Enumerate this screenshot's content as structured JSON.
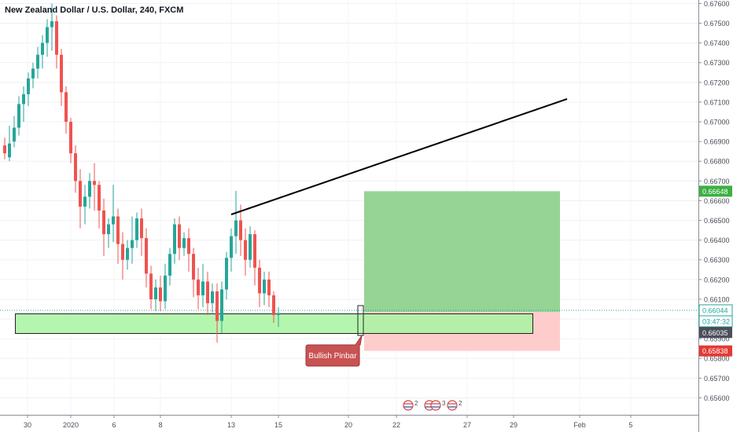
{
  "chart_title": "New Zealand Dollar / U.S. Dollar, 240, FXCM",
  "chart_data": {
    "type": "candlestick",
    "title": "New Zealand Dollar / U.S. Dollar, 240, FXCM",
    "symbol": "NZDUSD",
    "timeframe": "240",
    "source": "FXCM",
    "ylim": [
      0.655,
      0.676
    ],
    "y_ticks": [
      "0.65600",
      "0.65700",
      "0.65800",
      "0.65900",
      "0.66000",
      "0.66100",
      "0.66200",
      "0.66300",
      "0.66400",
      "0.66500",
      "0.66600",
      "0.66700",
      "0.66800",
      "0.66900",
      "0.67000",
      "0.67100",
      "0.67200",
      "0.67300",
      "0.67400",
      "0.67500",
      "0.67600"
    ],
    "x_ticks": [
      "30",
      "2020",
      "6",
      "8",
      "13",
      "15",
      "20",
      "22",
      "27",
      "29",
      "Feb",
      "5"
    ],
    "price_labels": {
      "take_profit": "0.66648",
      "last_price": "0.66044",
      "countdown": "03:47:32",
      "entry": "0.66035",
      "stop_loss": "0.65838"
    },
    "colors": {
      "up": "#26a69a",
      "down": "#ef5350",
      "profit_zone": "#8fd28f",
      "loss_zone": "#ffc9c9",
      "support_zone": "#a8f5a0",
      "annotation": "#c95252"
    },
    "candles": [
      [
        0.6688,
        0.6692,
        0.6684,
        0.6681
      ],
      [
        0.6682,
        0.6698,
        0.6689,
        0.668
      ],
      [
        0.669,
        0.6703,
        0.6697,
        0.6687
      ],
      [
        0.6697,
        0.6713,
        0.6709,
        0.6693
      ],
      [
        0.6709,
        0.6718,
        0.6714,
        0.67
      ],
      [
        0.6714,
        0.6725,
        0.6722,
        0.6708
      ],
      [
        0.6722,
        0.673,
        0.6727,
        0.6717
      ],
      [
        0.6727,
        0.6738,
        0.6734,
        0.6722
      ],
      [
        0.6734,
        0.6744,
        0.674,
        0.6727
      ],
      [
        0.674,
        0.6752,
        0.6748,
        0.6733
      ],
      [
        0.6748,
        0.676,
        0.6751,
        0.6736
      ],
      [
        0.6751,
        0.6754,
        0.6734,
        0.6727
      ],
      [
        0.6734,
        0.6737,
        0.6715,
        0.6708
      ],
      [
        0.6715,
        0.6718,
        0.67,
        0.6694
      ],
      [
        0.67,
        0.6702,
        0.6684,
        0.6679
      ],
      [
        0.6684,
        0.6688,
        0.667,
        0.6664
      ],
      [
        0.667,
        0.6676,
        0.6657,
        0.6646
      ],
      [
        0.6657,
        0.6668,
        0.6662,
        0.6648
      ],
      [
        0.6662,
        0.6674,
        0.667,
        0.6656
      ],
      [
        0.667,
        0.6679,
        0.6668,
        0.6655
      ],
      [
        0.6668,
        0.667,
        0.6655,
        0.6646
      ],
      [
        0.6655,
        0.6661,
        0.6643,
        0.6632
      ],
      [
        0.6643,
        0.6651,
        0.6648,
        0.6636
      ],
      [
        0.6648,
        0.6668,
        0.6652,
        0.6639
      ],
      [
        0.6652,
        0.6656,
        0.6638,
        0.6628
      ],
      [
        0.6638,
        0.6644,
        0.663,
        0.662
      ],
      [
        0.663,
        0.664,
        0.6636,
        0.6625
      ],
      [
        0.6636,
        0.6652,
        0.664,
        0.6628
      ],
      [
        0.664,
        0.6654,
        0.6651,
        0.6636
      ],
      [
        0.6651,
        0.6656,
        0.6641,
        0.6632
      ],
      [
        0.6641,
        0.6646,
        0.6623,
        0.6616
      ],
      [
        0.6623,
        0.6627,
        0.661,
        0.6605
      ],
      [
        0.661,
        0.662,
        0.6616,
        0.6604
      ],
      [
        0.6616,
        0.6622,
        0.6609,
        0.6604
      ],
      [
        0.6609,
        0.6628,
        0.6622,
        0.6605
      ],
      [
        0.6622,
        0.6636,
        0.6633,
        0.6617
      ],
      [
        0.6633,
        0.6651,
        0.6648,
        0.6628
      ],
      [
        0.6648,
        0.6652,
        0.6636,
        0.663
      ],
      [
        0.6636,
        0.6644,
        0.6641,
        0.6632
      ],
      [
        0.6641,
        0.6646,
        0.6633,
        0.6624
      ],
      [
        0.6633,
        0.6636,
        0.662,
        0.6611
      ],
      [
        0.662,
        0.6626,
        0.6612,
        0.6605
      ],
      [
        0.6612,
        0.6628,
        0.6619,
        0.6606
      ],
      [
        0.6619,
        0.6624,
        0.6608,
        0.6602
      ],
      [
        0.6608,
        0.6618,
        0.6614,
        0.6603
      ],
      [
        0.6614,
        0.6618,
        0.6599,
        0.6588
      ],
      [
        0.6599,
        0.6619,
        0.6615,
        0.6593
      ],
      [
        0.6615,
        0.6634,
        0.6631,
        0.661
      ],
      [
        0.6631,
        0.6646,
        0.6642,
        0.6624
      ],
      [
        0.6642,
        0.6665,
        0.665,
        0.6633
      ],
      [
        0.665,
        0.6658,
        0.664,
        0.6632
      ],
      [
        0.664,
        0.6646,
        0.663,
        0.6622
      ],
      [
        0.663,
        0.6647,
        0.6643,
        0.6626
      ],
      [
        0.6643,
        0.6645,
        0.6626,
        0.6617
      ],
      [
        0.6626,
        0.663,
        0.6613,
        0.6606
      ],
      [
        0.6613,
        0.6624,
        0.662,
        0.6607
      ],
      [
        0.662,
        0.6624,
        0.6612,
        0.6606
      ],
      [
        0.6612,
        0.6614,
        0.6602,
        0.6598
      ],
      [
        0.6602,
        0.6606,
        0.6603,
        0.6596
      ]
    ],
    "trendlines": [
      {
        "from": [
          43,
          0.6652
        ],
        "to": [
          107,
          0.6711
        ]
      }
    ],
    "zones": {
      "support": {
        "x0": -15,
        "x1": 99,
        "top": 0.66035,
        "bottom": 0.6594
      },
      "long_position": {
        "x0": 67,
        "x1": 104,
        "entry": 0.66035,
        "take_profit": 0.66648,
        "stop_loss": 0.65838
      }
    },
    "annotation": "Bullish Pinbar"
  }
}
